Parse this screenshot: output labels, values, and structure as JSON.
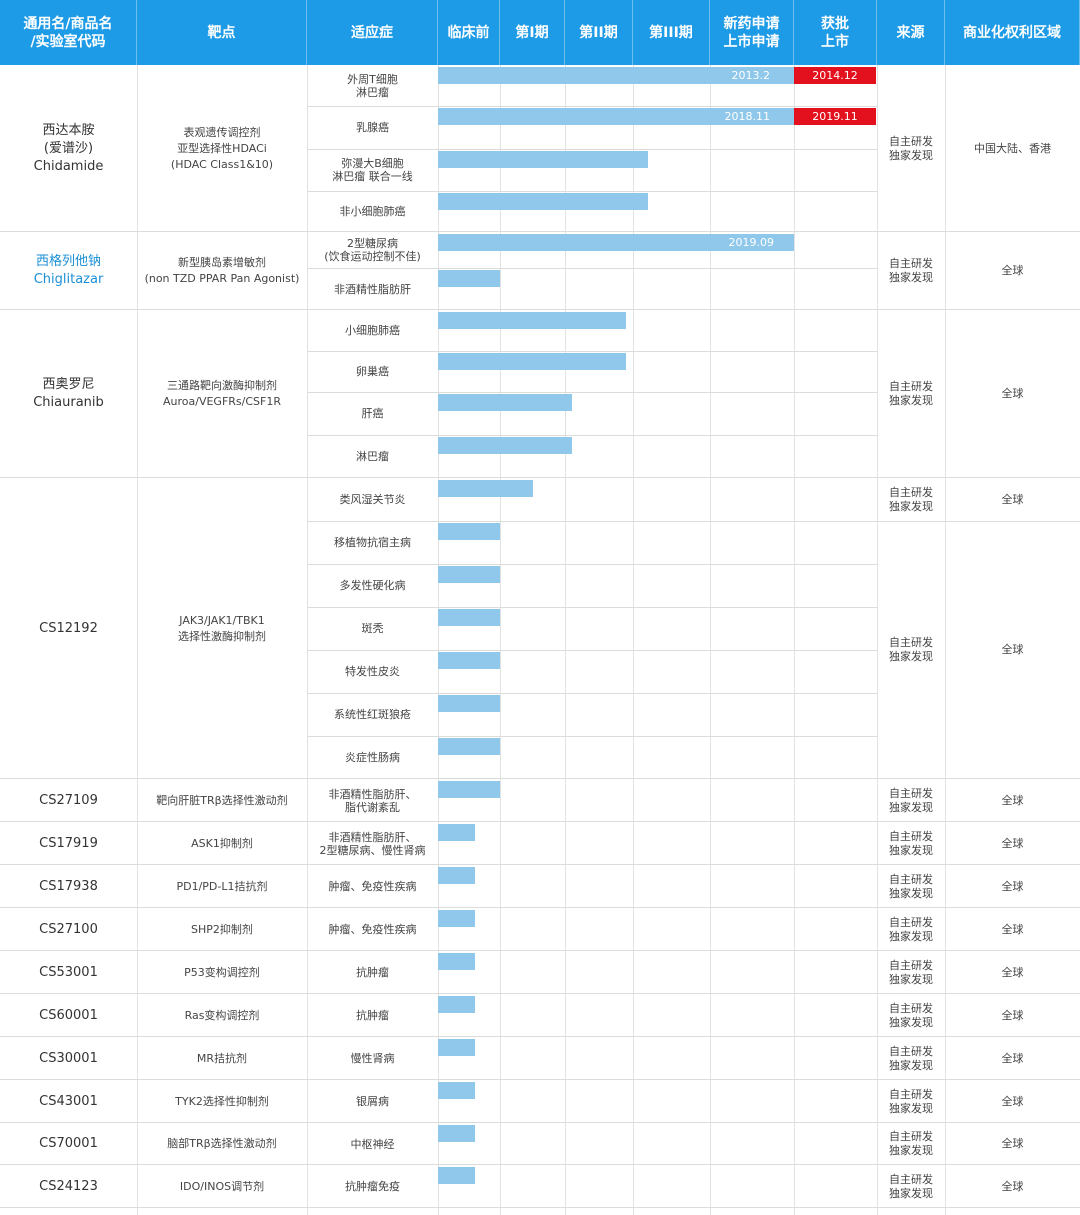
{
  "chart_data": {
    "type": "table",
    "title": "",
    "headers": [
      "通用名/商品名\n/实验室代码",
      "靶点",
      "适应症",
      "临床前",
      "第I期",
      "第II期",
      "第III期",
      "新药申请\n上市申请",
      "获批\n上市",
      "来源",
      "商业化权利区域"
    ],
    "stages": [
      "临床前",
      "第I期",
      "第II期",
      "第III期",
      "新药申请/上市申请",
      "获批上市"
    ],
    "drugs": [
      {
        "name": "西达本胺\n(爱谱沙)\nChidamide",
        "target": "表观遗传调控剂\n亚型选择性HDACi\n(HDAC Class1&10)",
        "source": "自主研发\n独家发现",
        "region": "中国大陆、香港",
        "indications": [
          {
            "name": "外周T细胞\n淋巴瘤",
            "progress": 6,
            "filing_date": "2013.2",
            "approval_date": "2014.12"
          },
          {
            "name": "乳腺癌",
            "progress": 6,
            "filing_date": "2018.11",
            "approval_date": "2019.11"
          },
          {
            "name": "弥漫大B细胞\n淋巴瘤 联合一线",
            "progress": 3.2
          },
          {
            "name": "非小细胞肺癌",
            "progress": 3.2
          }
        ]
      },
      {
        "name": "西格列他钠\nChiglitazar",
        "link": true,
        "target": "新型胰岛素增敏剂\n(non TZD PPAR Pan Agonist)",
        "source": "自主研发\n独家发现",
        "region": "全球",
        "indications": [
          {
            "name": "2型糖尿病\n(饮食运动控制不佳)",
            "progress": 5,
            "filing_date": "2019.09"
          },
          {
            "name": "非酒精性脂肪肝",
            "progress": 1
          }
        ]
      },
      {
        "name": "西奥罗尼\nChiauranib",
        "target": "三通路靶向激酶抑制剂\nAuroa/VEGFRs/CSF1R",
        "source": "自主研发\n独家发现",
        "region": "全球",
        "indications": [
          {
            "name": "小细胞肺癌",
            "progress": 2.9
          },
          {
            "name": "卵巢癌",
            "progress": 2.9
          },
          {
            "name": "肝癌",
            "progress": 2.1
          },
          {
            "name": "淋巴瘤",
            "progress": 2.1
          }
        ]
      },
      {
        "name": "CS12192",
        "target": "JAK3/JAK1/TBK1\n选择性激酶抑制剂",
        "source": "自主研发\n独家发现",
        "region": "全球",
        "source_2": "自主研发\n独家发现",
        "region_2": "全球",
        "indications": [
          {
            "name": "类风湿关节炎",
            "progress": 1.5
          },
          {
            "name": "移植物抗宿主病",
            "progress": 1
          },
          {
            "name": "多发性硬化病",
            "progress": 1
          },
          {
            "name": "斑秃",
            "progress": 1
          },
          {
            "name": "特发性皮炎",
            "progress": 1
          },
          {
            "name": "系统性红斑狼疮",
            "progress": 1
          },
          {
            "name": "炎症性肠病",
            "progress": 1
          }
        ]
      },
      {
        "name": "CS27109",
        "target": "靶向肝脏TRβ选择性激动剂",
        "source": "自主研发\n独家发现",
        "region": "全球",
        "indications": [
          {
            "name": "非酒精性脂肪肝、\n脂代谢紊乱",
            "progress": 1
          }
        ]
      },
      {
        "name": "CS17919",
        "target": "ASK1抑制剂",
        "source": "自主研发\n独家发现",
        "region": "全球",
        "indications": [
          {
            "name": "非酒精性脂肪肝、\n2型糖尿病、慢性肾病",
            "progress": 0.6
          }
        ]
      },
      {
        "name": "CS17938",
        "target": "PD1/PD-L1拮抗剂",
        "source": "自主研发\n独家发现",
        "region": "全球",
        "indications": [
          {
            "name": "肿瘤、免疫性疾病",
            "progress": 0.6
          }
        ]
      },
      {
        "name": "CS27100",
        "target": "SHP2抑制剂",
        "source": "自主研发\n独家发现",
        "region": "全球",
        "indications": [
          {
            "name": "肿瘤、免疫性疾病",
            "progress": 0.6
          }
        ]
      },
      {
        "name": "CS53001",
        "target": "P53变构调控剂",
        "source": "自主研发\n独家发现",
        "region": "全球",
        "indications": [
          {
            "name": "抗肿瘤",
            "progress": 0.6
          }
        ]
      },
      {
        "name": "CS60001",
        "target": "Ras变构调控剂",
        "source": "自主研发\n独家发现",
        "region": "全球",
        "indications": [
          {
            "name": "抗肿瘤",
            "progress": 0.6
          }
        ]
      },
      {
        "name": "CS30001",
        "target": "MR拮抗剂",
        "source": "自主研发\n独家发现",
        "region": "全球",
        "indications": [
          {
            "name": "慢性肾病",
            "progress": 0.6
          }
        ]
      },
      {
        "name": "CS43001",
        "target": "TYK2选择性抑制剂",
        "source": "自主研发\n独家发现",
        "region": "全球",
        "indications": [
          {
            "name": "银屑病",
            "progress": 0.6
          }
        ]
      },
      {
        "name": "CS70001",
        "target": "脑部TRβ选择性激动剂",
        "source": "自主研发\n独家发现",
        "region": "全球",
        "indications": [
          {
            "name": "中枢神经",
            "progress": 0.6
          }
        ]
      },
      {
        "name": "CS24123",
        "target": "IDO/INOS调节剂",
        "source": "自主研发\n独家发现",
        "region": "全球",
        "indications": [
          {
            "name": "抗肿瘤免疫",
            "progress": 0.6
          }
        ]
      }
    ]
  }
}
